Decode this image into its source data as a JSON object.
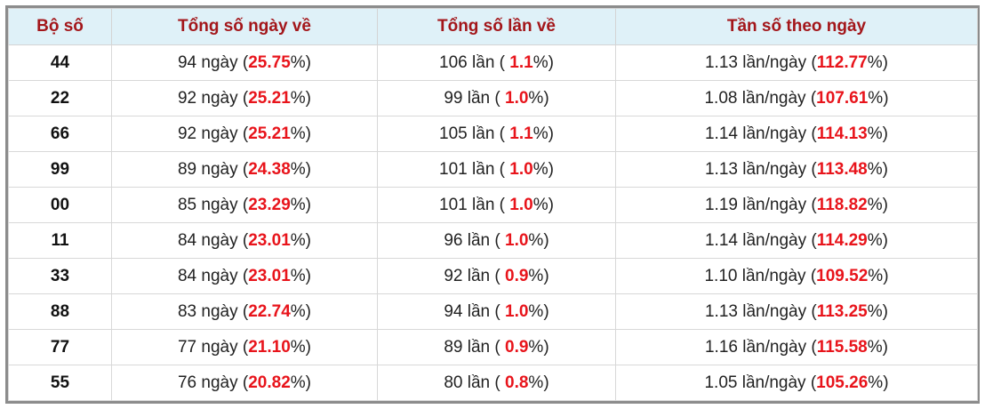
{
  "table": {
    "headers": [
      "Bộ số",
      "Tổng số ngày về",
      "Tổng số lần về",
      "Tần số theo ngày"
    ],
    "rows": [
      {
        "so": "44",
        "days": [
          "94 ngày (",
          "25.75",
          "%)"
        ],
        "times": [
          "106 lần ( ",
          "1.1",
          "%)"
        ],
        "freq": [
          "1.13 lần/ngày (",
          "112.77",
          "%)"
        ]
      },
      {
        "so": "22",
        "days": [
          "92 ngày (",
          "25.21",
          "%)"
        ],
        "times": [
          "99 lần ( ",
          "1.0",
          "%)"
        ],
        "freq": [
          "1.08 lần/ngày (",
          "107.61",
          "%)"
        ]
      },
      {
        "so": "66",
        "days": [
          "92 ngày (",
          "25.21",
          "%)"
        ],
        "times": [
          "105 lần ( ",
          "1.1",
          "%)"
        ],
        "freq": [
          "1.14 lần/ngày (",
          "114.13",
          "%)"
        ]
      },
      {
        "so": "99",
        "days": [
          "89 ngày (",
          "24.38",
          "%)"
        ],
        "times": [
          "101 lần ( ",
          "1.0",
          "%)"
        ],
        "freq": [
          "1.13 lần/ngày (",
          "113.48",
          "%)"
        ]
      },
      {
        "so": "00",
        "days": [
          "85 ngày (",
          "23.29",
          "%)"
        ],
        "times": [
          "101 lần ( ",
          "1.0",
          "%)"
        ],
        "freq": [
          "1.19 lần/ngày (",
          "118.82",
          "%)"
        ]
      },
      {
        "so": "11",
        "days": [
          "84 ngày (",
          "23.01",
          "%)"
        ],
        "times": [
          "96 lần ( ",
          "1.0",
          "%)"
        ],
        "freq": [
          "1.14 lần/ngày (",
          "114.29",
          "%)"
        ]
      },
      {
        "so": "33",
        "days": [
          "84 ngày (",
          "23.01",
          "%)"
        ],
        "times": [
          "92 lần ( ",
          "0.9",
          "%)"
        ],
        "freq": [
          "1.10 lần/ngày (",
          "109.52",
          "%)"
        ]
      },
      {
        "so": "88",
        "days": [
          "83 ngày (",
          "22.74",
          "%)"
        ],
        "times": [
          "94 lần ( ",
          "1.0",
          "%)"
        ],
        "freq": [
          "1.13 lần/ngày (",
          "113.25",
          "%)"
        ]
      },
      {
        "so": "77",
        "days": [
          "77 ngày (",
          "21.10",
          "%)"
        ],
        "times": [
          "89 lần ( ",
          "0.9",
          "%)"
        ],
        "freq": [
          "1.16 lần/ngày (",
          "115.58",
          "%)"
        ]
      },
      {
        "so": "55",
        "days": [
          "76 ngày (",
          "20.82",
          "%)"
        ],
        "times": [
          "80 lần ( ",
          "0.8",
          "%)"
        ],
        "freq": [
          "1.05 lần/ngày (",
          "105.26",
          "%)"
        ]
      }
    ]
  }
}
